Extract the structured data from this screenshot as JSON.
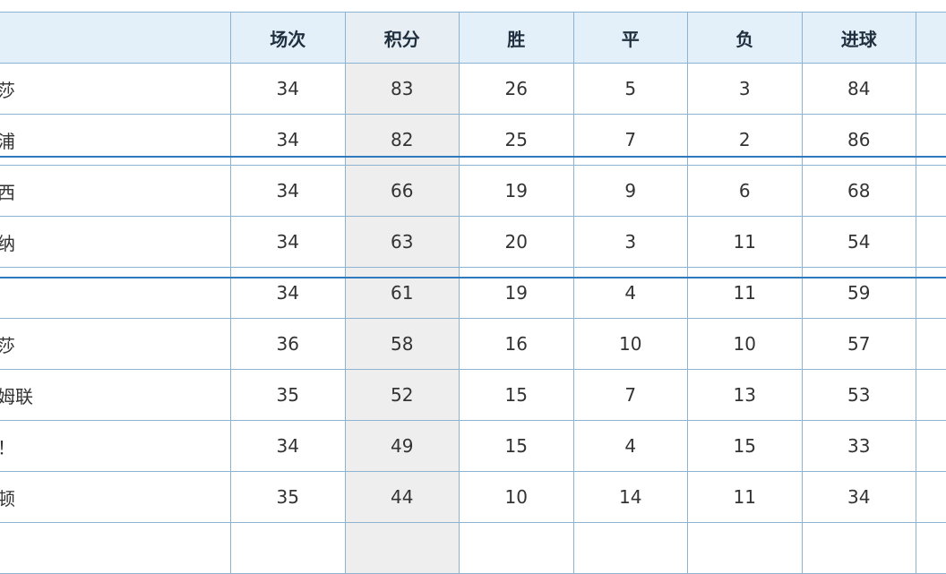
{
  "table": {
    "headers": [
      "",
      "场次",
      "积分",
      "胜",
      "平",
      "负",
      "进球",
      ""
    ],
    "rows": [
      {
        "team": "莎",
        "played": "34",
        "points": "83",
        "won": "26",
        "drawn": "5",
        "lost": "3",
        "goals": "84"
      },
      {
        "team": "浦",
        "played": "34",
        "points": "82",
        "won": "25",
        "drawn": "7",
        "lost": "2",
        "goals": "86"
      },
      {
        "team": "西",
        "played": "34",
        "points": "66",
        "won": "19",
        "drawn": "9",
        "lost": "6",
        "goals": "68"
      },
      {
        "team": "纳",
        "played": "34",
        "points": "63",
        "won": "20",
        "drawn": "3",
        "lost": "11",
        "goals": "54"
      },
      {
        "team": "",
        "played": "34",
        "points": "61",
        "won": "19",
        "drawn": "4",
        "lost": "11",
        "goals": "59"
      },
      {
        "team": "莎",
        "played": "36",
        "points": "58",
        "won": "16",
        "drawn": "10",
        "lost": "10",
        "goals": "57"
      },
      {
        "team": "姆联",
        "played": "35",
        "points": "52",
        "won": "15",
        "drawn": "7",
        "lost": "13",
        "goals": "53"
      },
      {
        "team": "！",
        "played": "34",
        "points": "49",
        "won": "15",
        "drawn": "4",
        "lost": "15",
        "goals": "33"
      },
      {
        "team": "顿",
        "played": "35",
        "points": "44",
        "won": "10",
        "drawn": "14",
        "lost": "11",
        "goals": "34"
      },
      {
        "team": "",
        "played": "",
        "points": "",
        "won": "",
        "drawn": "",
        "lost": "",
        "goals": ""
      }
    ]
  },
  "colors": {
    "header_bg": "#e3f0fa",
    "border": "#8eb3d0",
    "highlight_column_bg": "#eeeeee",
    "zone_separator": "#2f79bf"
  }
}
